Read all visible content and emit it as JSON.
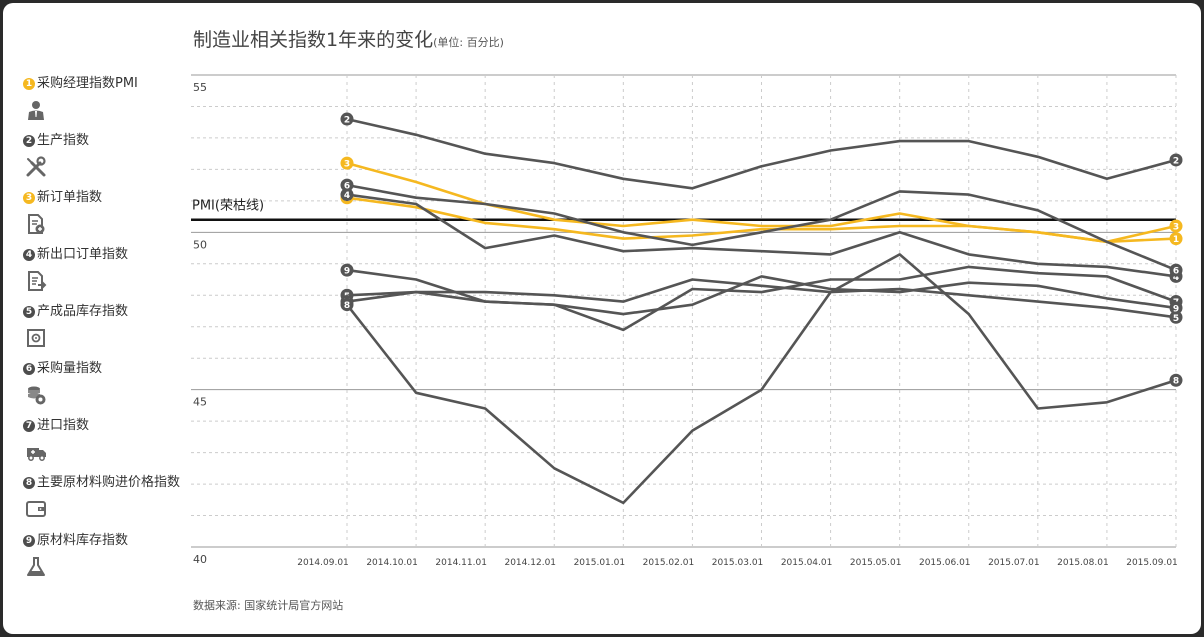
{
  "header": {
    "title": "制造业相关指数1年来的变化",
    "unit": "(单位: 百分比)"
  },
  "footer": {
    "source": "数据来源: 国家统计局官方网站"
  },
  "legend": {
    "items": [
      {
        "num": "1",
        "label": "采购经理指数PMI",
        "color": "#f5b820",
        "icon": "manager-icon"
      },
      {
        "num": "2",
        "label": "生产指数",
        "color": "#4d4d4d",
        "icon": "tools-icon"
      },
      {
        "num": "3",
        "label": "新订单指数",
        "color": "#f5b820",
        "icon": "document-icon"
      },
      {
        "num": "4",
        "label": "新出口订单指数",
        "color": "#4d4d4d",
        "icon": "export-document-icon"
      },
      {
        "num": "5",
        "label": "产成品库存指数",
        "color": "#4d4d4d",
        "icon": "safe-icon"
      },
      {
        "num": "6",
        "label": "采购量指数",
        "color": "#4d4d4d",
        "icon": "coins-icon"
      },
      {
        "num": "7",
        "label": "进口指数",
        "color": "#4d4d4d",
        "icon": "truck-icon"
      },
      {
        "num": "8",
        "label": "主要原材料购进价格指数",
        "color": "#4d4d4d",
        "icon": "wallet-icon"
      },
      {
        "num": "9",
        "label": "原材料库存指数",
        "color": "#4d4d4d",
        "icon": "flask-icon"
      }
    ]
  },
  "chart_data": {
    "type": "line",
    "x": [
      "2014.09.01",
      "2014.10.01",
      "2014.11.01",
      "2014.12.01",
      "2015.01.01",
      "2015.02.01",
      "2015.03.01",
      "2015.04.01",
      "2015.05.01",
      "2015.06.01",
      "2015.07.01",
      "2015.08.01",
      "2015.09.01"
    ],
    "ylim": [
      40,
      55
    ],
    "yticks": [
      40,
      45,
      50,
      55
    ],
    "grid": true,
    "reference_line": {
      "value": 50.4,
      "label": "PMI(荣枯线)"
    },
    "series": [
      {
        "num": "1",
        "color": "#f5b820",
        "values": [
          51.1,
          50.8,
          50.3,
          50.1,
          49.8,
          49.9,
          50.1,
          50.1,
          50.2,
          50.2,
          50.0,
          49.7,
          49.8
        ]
      },
      {
        "num": "2",
        "color": "#555555",
        "values": [
          53.6,
          53.1,
          52.5,
          52.2,
          51.7,
          51.4,
          52.1,
          52.6,
          52.9,
          52.9,
          52.4,
          51.7,
          52.3
        ]
      },
      {
        "num": "3",
        "color": "#f5b820",
        "values": [
          52.2,
          51.6,
          50.9,
          50.4,
          50.2,
          50.4,
          50.2,
          50.2,
          50.6,
          50.2,
          50.0,
          49.7,
          50.2
        ]
      },
      {
        "num": "4",
        "color": "#555555",
        "values": [
          51.2,
          50.9,
          49.5,
          49.9,
          49.4,
          49.5,
          49.4,
          49.3,
          50.0,
          49.3,
          49.0,
          48.9,
          48.6
        ]
      },
      {
        "num": "5",
        "color": "#555555",
        "values": [
          48.0,
          48.1,
          48.1,
          48.0,
          47.8,
          48.5,
          48.3,
          48.1,
          48.2,
          48.0,
          47.8,
          47.6,
          47.3
        ]
      },
      {
        "num": "6",
        "color": "#555555",
        "values": [
          51.5,
          51.1,
          50.9,
          50.6,
          50.0,
          49.6,
          50.0,
          50.4,
          51.3,
          51.2,
          50.7,
          49.7,
          48.8
        ]
      },
      {
        "num": "7",
        "color": "#555555",
        "values": [
          47.8,
          48.1,
          47.8,
          47.7,
          46.9,
          48.2,
          48.1,
          48.5,
          48.5,
          48.9,
          48.7,
          48.6,
          47.8
        ]
      },
      {
        "num": "8",
        "color": "#555555",
        "values": [
          47.7,
          44.9,
          44.4,
          42.5,
          41.4,
          43.7,
          45.0,
          48.1,
          49.3,
          47.4,
          44.4,
          44.6,
          45.3
        ]
      },
      {
        "num": "9",
        "color": "#555555",
        "values": [
          48.8,
          48.5,
          47.8,
          47.7,
          47.4,
          47.7,
          48.6,
          48.2,
          48.1,
          48.4,
          48.3,
          47.9,
          47.6
        ]
      }
    ]
  }
}
